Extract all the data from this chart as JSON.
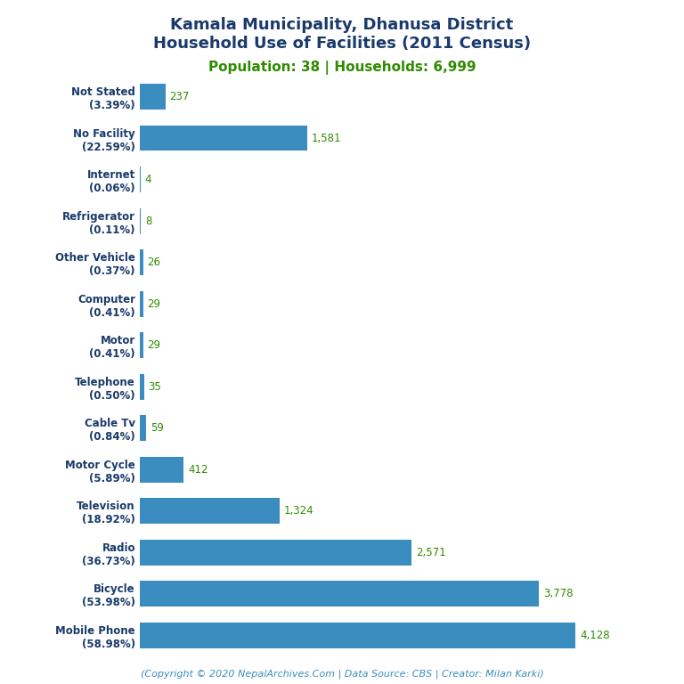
{
  "title_line1": "Kamala Municipality, Dhanusa District",
  "title_line2": "Household Use of Facilities (2011 Census)",
  "subtitle": "Population: 38 | Households: 6,999",
  "categories": [
    "Not Stated\n(3.39%)",
    "No Facility\n(22.59%)",
    "Internet\n(0.06%)",
    "Refrigerator\n(0.11%)",
    "Other Vehicle\n(0.37%)",
    "Computer\n(0.41%)",
    "Motor\n(0.41%)",
    "Telephone\n(0.50%)",
    "Cable Tv\n(0.84%)",
    "Motor Cycle\n(5.89%)",
    "Television\n(18.92%)",
    "Radio\n(36.73%)",
    "Bicycle\n(53.98%)",
    "Mobile Phone\n(58.98%)"
  ],
  "values": [
    237,
    1581,
    4,
    8,
    26,
    29,
    29,
    35,
    59,
    412,
    1324,
    2571,
    3778,
    4128
  ],
  "value_labels": [
    "237",
    "1,581",
    "4",
    "8",
    "26",
    "29",
    "29",
    "35",
    "59",
    "412",
    "1,324",
    "2,571",
    "3,778",
    "4,128"
  ],
  "bar_color": "#3b8dbf",
  "title_color": "#1a3a6b",
  "subtitle_color": "#2e8b00",
  "value_color": "#2e8b00",
  "footer_text": "(Copyright © 2020 NepalArchives.Com | Data Source: CBS | Creator: Milan Karki)",
  "footer_color": "#3b8dbf",
  "background_color": "#ffffff",
  "xlim": [
    0,
    4700
  ]
}
